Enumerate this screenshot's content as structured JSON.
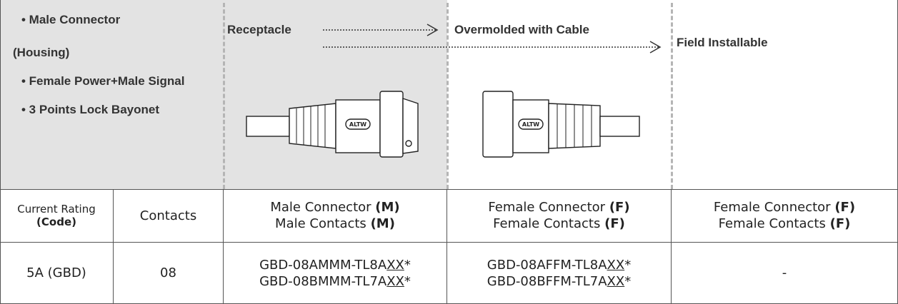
{
  "features": [
    "• Male Connector",
    "(Housing)",
    "• Female Power+Male Signal",
    "• 3 Points Lock Bayonet"
  ],
  "columns": [
    "Receptacle",
    "Overmolded with Cable",
    "Field Installable"
  ],
  "table": {
    "header": [
      {
        "text": "Current Rating",
        "code": "(Code)"
      },
      {
        "text": "Contacts"
      },
      {
        "lines": [
          {
            "text": "Male Connector",
            "code": "(M)"
          },
          {
            "text": "Male Contacts",
            "code": "(M)"
          }
        ]
      },
      {
        "lines": [
          {
            "text": "Female Connector",
            "code": "(F)"
          },
          {
            "text": "Female Contacts",
            "code": "(F)"
          }
        ]
      },
      {
        "lines": [
          {
            "text": "Female Connector",
            "code": "(F)"
          },
          {
            "text": "Female Contacts",
            "code": "(F)"
          }
        ]
      }
    ],
    "rows": [
      {
        "rating": "5A (GBD)",
        "contacts": "08",
        "receptacle": [
          {
            "prefix": "GBD-08AMMM-TL8A",
            "code": "XX",
            "suffix": "*"
          },
          {
            "prefix": "GBD-08BMMM-TL7A",
            "code": "XX",
            "suffix": "*"
          }
        ],
        "overmolded": [
          {
            "prefix": "GBD-08AFFM-TL8A",
            "code": "XX",
            "suffix": "*"
          },
          {
            "prefix": "GBD-08BFFM-TL7A",
            "code": "XX",
            "suffix": "*"
          }
        ],
        "field": "-"
      }
    ]
  }
}
